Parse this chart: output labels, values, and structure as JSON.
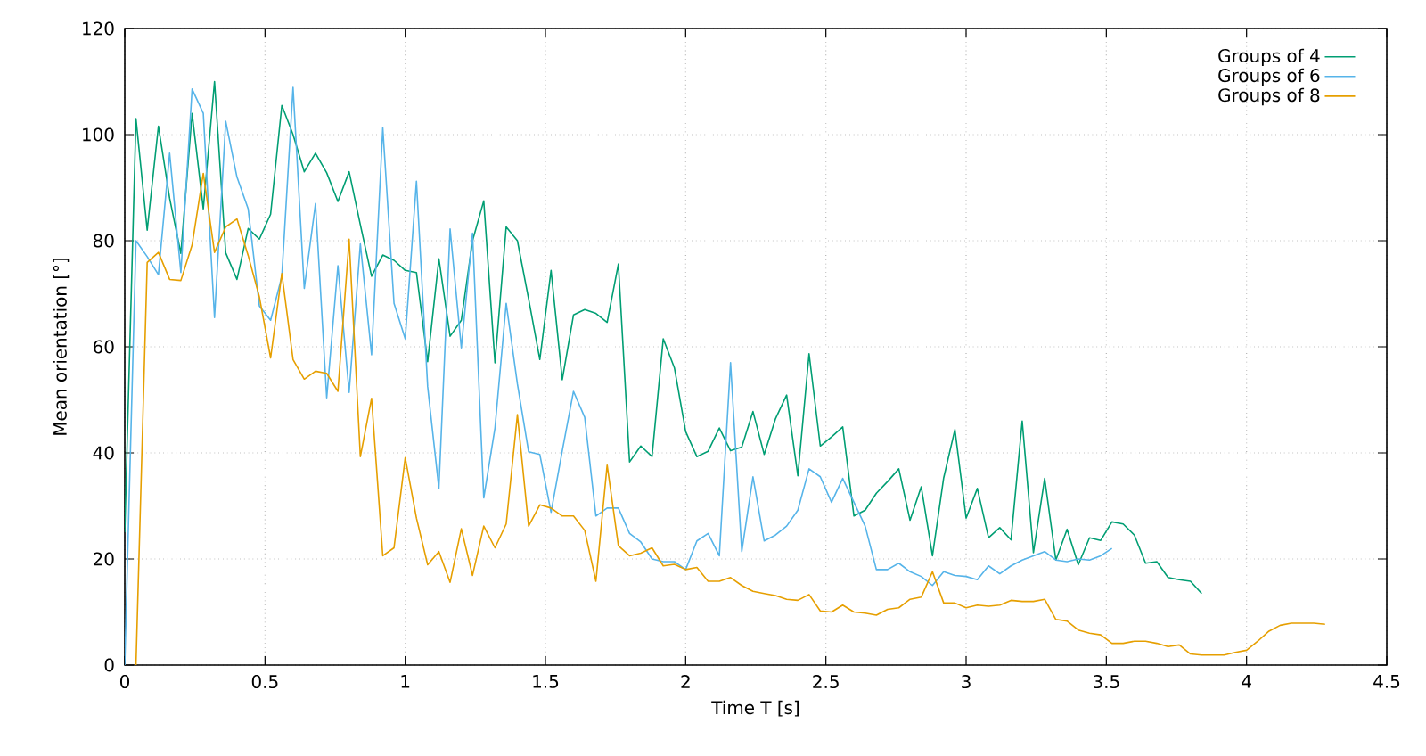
{
  "chart_data": {
    "type": "line",
    "xlabel": "Time T [s]",
    "ylabel": "Mean orientation [°]",
    "xlim": [
      0,
      4.5
    ],
    "ylim": [
      0,
      120
    ],
    "xticks": [
      0,
      0.5,
      1,
      1.5,
      2,
      2.5,
      3,
      3.5,
      4,
      4.5
    ],
    "yticks": [
      0,
      20,
      40,
      60,
      80,
      100,
      120
    ],
    "grid": true,
    "legend": "top right",
    "marker": "none",
    "line_style": "solid",
    "series": [
      {
        "name": "Groups of 4",
        "color": "#009e73",
        "x": [
          0,
          0.04,
          0.08,
          0.12,
          0.16,
          0.2,
          0.24,
          0.28,
          0.32,
          0.36,
          0.4,
          0.44,
          0.48,
          0.52,
          0.56,
          0.6,
          0.64,
          0.68,
          0.72,
          0.76,
          0.8,
          0.84,
          0.88,
          0.92,
          0.96,
          1,
          1.04,
          1.08,
          1.12,
          1.16,
          1.2,
          1.24,
          1.28,
          1.32,
          1.36,
          1.4,
          1.44,
          1.48,
          1.52,
          1.56,
          1.6,
          1.64,
          1.68,
          1.72,
          1.76,
          1.8,
          1.84,
          1.88,
          1.92,
          1.96,
          2,
          2.04,
          2.08,
          2.12,
          2.16,
          2.2,
          2.24,
          2.28,
          2.32,
          2.36,
          2.4,
          2.44,
          2.48,
          2.52,
          2.56,
          2.6,
          2.64,
          2.68,
          2.72,
          2.76,
          2.8,
          2.84,
          2.88,
          2.92,
          2.96,
          3,
          3.04,
          3.08,
          3.12,
          3.16,
          3.2,
          3.24,
          3.28,
          3.32,
          3.36,
          3.4,
          3.44,
          3.48,
          3.52,
          3.56,
          3.6,
          3.64,
          3.68,
          3.72,
          3.76,
          3.8,
          3.84
        ],
        "values": [
          25,
          103,
          82,
          101.6,
          88,
          77.6,
          104,
          86,
          110,
          77.7,
          72.7,
          82.3,
          80.3,
          85,
          105.5,
          100,
          93,
          96.5,
          92.8,
          87.4,
          93,
          83,
          73.3,
          77.3,
          76.3,
          74.4,
          74,
          57.2,
          76.6,
          62,
          65,
          80,
          87.5,
          57,
          82.6,
          80,
          69,
          57.6,
          74.4,
          53.8,
          66,
          67,
          66.3,
          64.6,
          75.6,
          38.3,
          41.3,
          39.3,
          61.5,
          56,
          44,
          39.3,
          40.3,
          44.7,
          40.4,
          41.1,
          47.8,
          39.7,
          46.4,
          50.9,
          35.7,
          58.7,
          41.3,
          43,
          44.9,
          28.1,
          29.2,
          32.4,
          34.6,
          37,
          27.3,
          33.6,
          20.6,
          35.3,
          44.4,
          27.7,
          33.3,
          24,
          25.9,
          23.6,
          46,
          21.2,
          35.2,
          19.8,
          25.6,
          18.9,
          24,
          23.5,
          27,
          26.6,
          24.5,
          19.2,
          19.5,
          16.5,
          16.1,
          15.8,
          13.5
        ]
      },
      {
        "name": "Groups of 6",
        "color": "#56b4e9",
        "x": [
          0,
          0.04,
          0.08,
          0.12,
          0.16,
          0.2,
          0.24,
          0.28,
          0.32,
          0.36,
          0.4,
          0.44,
          0.48,
          0.52,
          0.56,
          0.6,
          0.64,
          0.68,
          0.72,
          0.76,
          0.8,
          0.84,
          0.88,
          0.92,
          0.96,
          1,
          1.04,
          1.08,
          1.12,
          1.16,
          1.2,
          1.24,
          1.28,
          1.32,
          1.36,
          1.4,
          1.44,
          1.48,
          1.52,
          1.56,
          1.6,
          1.64,
          1.68,
          1.72,
          1.76,
          1.8,
          1.84,
          1.88,
          1.92,
          1.96,
          2,
          2.04,
          2.08,
          2.12,
          2.16,
          2.2,
          2.24,
          2.28,
          2.32,
          2.36,
          2.4,
          2.44,
          2.48,
          2.52,
          2.56,
          2.6,
          2.64,
          2.68,
          2.72,
          2.76,
          2.8,
          2.84,
          2.88,
          2.92,
          2.96,
          3,
          3.04,
          3.08,
          3.12,
          3.16,
          3.2,
          3.24,
          3.28,
          3.32,
          3.36,
          3.4,
          3.44,
          3.48,
          3.52
        ],
        "values": [
          0,
          80,
          77,
          73.6,
          96.5,
          74,
          108.6,
          104,
          65.5,
          102.5,
          92,
          86,
          67.7,
          65,
          73.3,
          108.9,
          71,
          87,
          50.4,
          75.3,
          51.4,
          79.4,
          58.5,
          101.3,
          68.2,
          61.5,
          91.2,
          52.5,
          33.3,
          82.2,
          59.8,
          81.4,
          31.5,
          44.7,
          68.2,
          53,
          40.2,
          39.7,
          28.8,
          40.4,
          51.6,
          46.7,
          28.1,
          29.6,
          29.6,
          24.8,
          23.2,
          20,
          19.5,
          19.5,
          18,
          23.4,
          24.8,
          20.6,
          57,
          21.4,
          35.5,
          23.4,
          24.5,
          26.2,
          29.2,
          37,
          35.5,
          30.7,
          35.2,
          30.7,
          26.2,
          18,
          18,
          19.2,
          17.6,
          16.7,
          15,
          17.6,
          16.9,
          16.7,
          16.1,
          18.7,
          17.2,
          18.7,
          19.8,
          20.6,
          21.4,
          19.8,
          19.5,
          20,
          19.8,
          20.6,
          22
        ]
      },
      {
        "name": "Groups of 8",
        "color": "#e69f00",
        "x": [
          0.04,
          0.08,
          0.12,
          0.16,
          0.2,
          0.24,
          0.28,
          0.32,
          0.36,
          0.4,
          0.44,
          0.48,
          0.52,
          0.56,
          0.6,
          0.64,
          0.68,
          0.72,
          0.76,
          0.8,
          0.84,
          0.88,
          0.92,
          0.96,
          1,
          1.04,
          1.08,
          1.12,
          1.16,
          1.2,
          1.24,
          1.28,
          1.32,
          1.36,
          1.4,
          1.44,
          1.48,
          1.52,
          1.56,
          1.6,
          1.64,
          1.68,
          1.72,
          1.76,
          1.8,
          1.84,
          1.88,
          1.92,
          1.96,
          2,
          2.04,
          2.08,
          2.12,
          2.16,
          2.2,
          2.24,
          2.28,
          2.32,
          2.36,
          2.4,
          2.44,
          2.48,
          2.52,
          2.56,
          2.6,
          2.64,
          2.68,
          2.72,
          2.76,
          2.8,
          2.84,
          2.88,
          2.92,
          2.96,
          3,
          3.04,
          3.08,
          3.12,
          3.16,
          3.2,
          3.24,
          3.28,
          3.32,
          3.36,
          3.4,
          3.44,
          3.48,
          3.52,
          3.56,
          3.6,
          3.64,
          3.68,
          3.72,
          3.76,
          3.8,
          3.84,
          3.88,
          3.92,
          3.96,
          4,
          4.04,
          4.08,
          4.12,
          4.16,
          4.2,
          4.24,
          4.28
        ],
        "values": [
          0,
          75.9,
          77.8,
          72.7,
          72.5,
          79.2,
          92.7,
          77.8,
          82.6,
          84.1,
          77.2,
          69.4,
          57.9,
          73.8,
          57.6,
          53.9,
          55.4,
          55,
          51.6,
          80.3,
          39.3,
          50.3,
          20.6,
          22.1,
          39.1,
          27.7,
          18.9,
          21.4,
          15.6,
          25.7,
          16.9,
          26.2,
          22.1,
          26.6,
          47.2,
          26.2,
          30.2,
          29.6,
          28.1,
          28.1,
          25.4,
          15.8,
          37.7,
          22.5,
          20.6,
          21.1,
          22.1,
          18.7,
          19,
          18,
          18.4,
          15.8,
          15.8,
          16.5,
          15,
          13.9,
          13.5,
          13.1,
          12.4,
          12.2,
          13.3,
          10.2,
          10,
          11.3,
          10,
          9.8,
          9.4,
          10.5,
          10.8,
          12.4,
          12.8,
          17.6,
          11.7,
          11.7,
          10.8,
          11.3,
          11.1,
          11.3,
          12.2,
          12,
          12,
          12.4,
          8.6,
          8.3,
          6.6,
          6,
          5.7,
          4.1,
          4.1,
          4.5,
          4.5,
          4.1,
          3.5,
          3.8,
          2.1,
          1.9,
          1.9,
          1.9,
          2.4,
          2.8,
          4.5,
          6.4,
          7.5,
          7.9,
          7.9,
          7.9,
          7.7
        ]
      }
    ]
  }
}
